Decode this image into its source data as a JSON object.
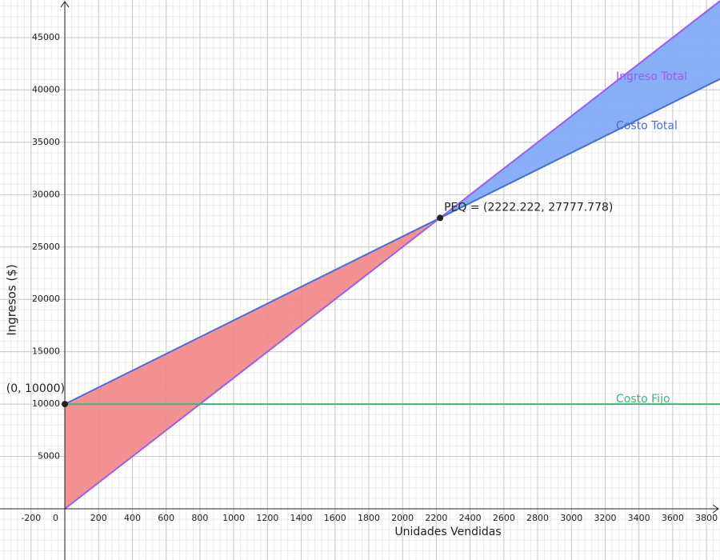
{
  "chart_data": {
    "type": "line",
    "x_label": "Unidades Vendidas",
    "y_label": "Ingresos ($)",
    "xlim": [
      -384,
      3880
    ],
    "ylim": [
      -4890,
      48590
    ],
    "xticks": [
      -200,
      0,
      200,
      400,
      600,
      800,
      1000,
      1200,
      1400,
      1600,
      1800,
      2000,
      2200,
      2400,
      2600,
      2800,
      3000,
      3200,
      3400,
      3600,
      3800
    ],
    "yticks": [
      5000,
      10000,
      15000,
      20000,
      25000,
      30000,
      35000,
      40000,
      45000
    ],
    "grid": true,
    "minor_grid": {
      "x": 40,
      "y": 1000
    },
    "series": [
      {
        "name": "Ingreso Total",
        "color": "#9d5ee8",
        "x": [
          0,
          3880
        ],
        "values": [
          0,
          48500
        ]
      },
      {
        "name": "Costo Total",
        "color": "#4a6cd4",
        "x": [
          0,
          3880
        ],
        "values": [
          10000,
          41040
        ]
      },
      {
        "name": "Costo Fijo",
        "color": "#3cb878",
        "x": [
          0,
          3880
        ],
        "values": [
          10000,
          10000
        ]
      }
    ],
    "points": [
      {
        "label": "(0, 10000)",
        "x": 0,
        "y": 10000
      },
      {
        "label": "PEQ = (2222.222, 27777.778)",
        "x": 2222.222,
        "y": 27777.778
      }
    ],
    "loss_color": "#f28686",
    "profit_color": "#82aaf6"
  }
}
